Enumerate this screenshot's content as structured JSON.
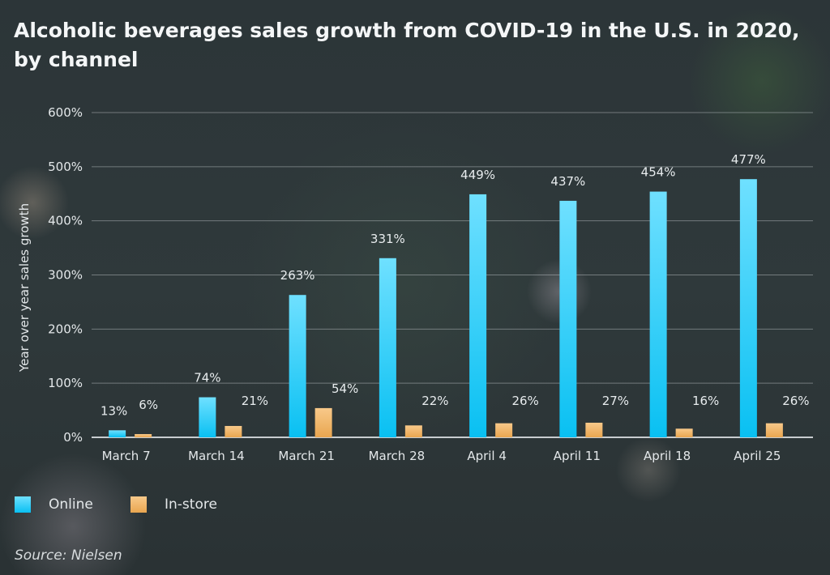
{
  "chart_data": {
    "type": "bar",
    "title": "Alcoholic beverages sales growth from COVID-19 in the U.S. in 2020, by channel",
    "xlabel": "",
    "ylabel": "Year over year sales growth",
    "ylim": [
      0,
      600
    ],
    "yticks": [
      "0%",
      "100%",
      "200%",
      "300%",
      "400%",
      "500%",
      "600%"
    ],
    "grid": true,
    "legend_position": "bottom-left",
    "categories": [
      "March 7",
      "March 14",
      "March 21",
      "March 28",
      "April 4",
      "April 11",
      "April 18",
      "April 25"
    ],
    "series": [
      {
        "name": "Online",
        "color": "#1ec8f5",
        "values": [
          13,
          74,
          263,
          331,
          449,
          437,
          454,
          477
        ]
      },
      {
        "name": "In-store",
        "color": "#f3b462",
        "values": [
          6,
          21,
          54,
          22,
          26,
          27,
          16,
          26
        ]
      }
    ],
    "source": "Source: Nielsen"
  }
}
